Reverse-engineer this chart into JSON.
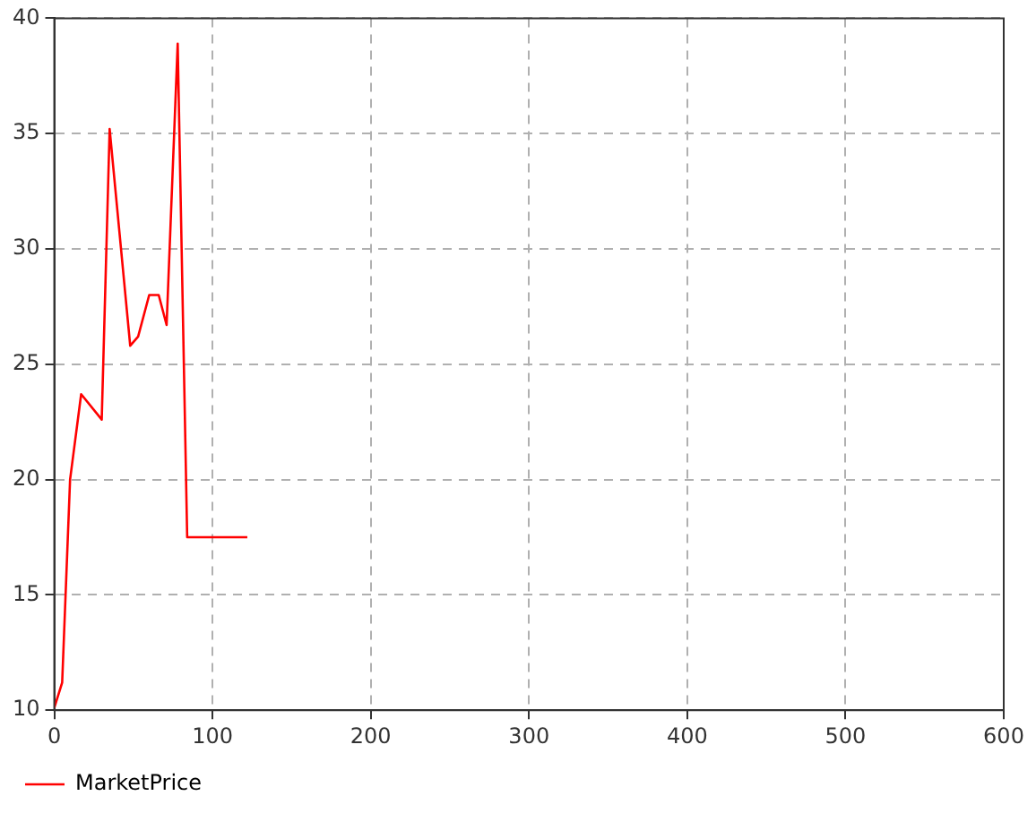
{
  "chart_data": {
    "type": "line",
    "x": [
      0,
      5,
      10,
      17,
      30,
      35,
      48,
      53,
      60,
      66,
      71,
      78,
      84,
      122
    ],
    "series": [
      {
        "name": "MarketPrice",
        "color": "#ff0000",
        "values": [
          10.1,
          11.2,
          20,
          23.7,
          22.6,
          35.2,
          25.8,
          26.2,
          28,
          28,
          26.7,
          38.9,
          17.5,
          17.5
        ]
      }
    ],
    "xlim": [
      0,
      600
    ],
    "xticks": [
      0,
      100,
      200,
      300,
      400,
      500,
      600
    ],
    "ylim": [
      10,
      40
    ],
    "yticks": [
      10,
      15,
      20,
      25,
      30,
      35,
      40
    ],
    "grid": true,
    "legend": "bottom left",
    "marker": "none",
    "line_style": "solid"
  }
}
